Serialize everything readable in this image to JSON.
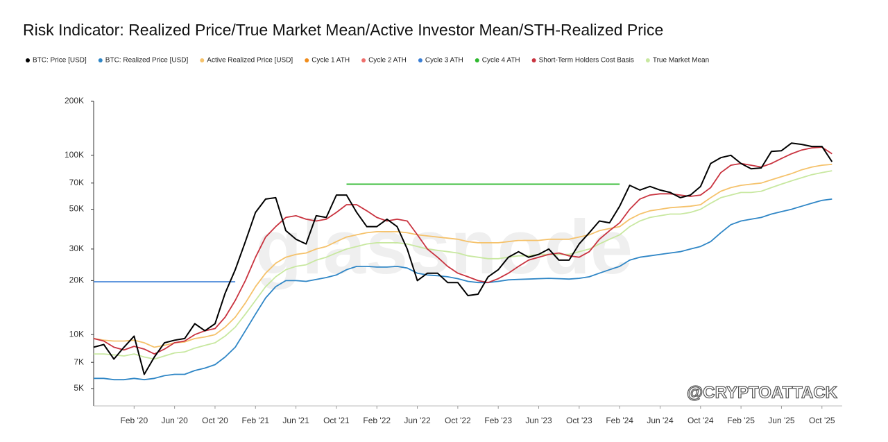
{
  "chart_data": {
    "type": "line",
    "title": "Risk Indicator: Realized Price/True Market Mean/Active Investor Mean/STH-Realized Price",
    "watermark": "glassnode",
    "credit": "@CRYPTOATTACK",
    "log_scale": true,
    "grid": false,
    "legend": "top",
    "x": [
      "2019-10",
      "2019-11",
      "2019-12",
      "2020-01",
      "2020-02",
      "2020-03",
      "2020-04",
      "2020-05",
      "2020-06",
      "2020-07",
      "2020-08",
      "2020-09",
      "2020-10",
      "2020-11",
      "2020-12",
      "2021-01",
      "2021-02",
      "2021-03",
      "2021-04",
      "2021-05",
      "2021-06",
      "2021-07",
      "2021-08",
      "2021-09",
      "2021-10",
      "2021-11",
      "2021-12",
      "2022-01",
      "2022-02",
      "2022-03",
      "2022-04",
      "2022-05",
      "2022-06",
      "2022-07",
      "2022-08",
      "2022-09",
      "2022-10",
      "2022-11",
      "2022-12",
      "2023-01",
      "2023-02",
      "2023-03",
      "2023-04",
      "2023-05",
      "2023-06",
      "2023-07",
      "2023-08",
      "2023-09",
      "2023-10",
      "2023-11",
      "2023-12",
      "2024-01",
      "2024-02",
      "2024-03",
      "2024-04",
      "2024-05",
      "2024-06",
      "2024-07",
      "2024-08",
      "2024-09",
      "2024-10",
      "2024-11",
      "2024-12",
      "2025-01",
      "2025-02",
      "2025-03",
      "2025-04",
      "2025-05",
      "2025-06",
      "2025-07",
      "2025-08",
      "2025-09",
      "2025-10",
      "2025-11"
    ],
    "xlim": [
      "2019-10",
      "2025-12"
    ],
    "xticks": [
      {
        "value": "2020-02",
        "label": "Feb '20"
      },
      {
        "value": "2020-06",
        "label": "Jun '20"
      },
      {
        "value": "2020-10",
        "label": "Oct '20"
      },
      {
        "value": "2021-02",
        "label": "Feb '21"
      },
      {
        "value": "2021-06",
        "label": "Jun '21"
      },
      {
        "value": "2021-10",
        "label": "Oct '21"
      },
      {
        "value": "2022-02",
        "label": "Feb '22"
      },
      {
        "value": "2022-06",
        "label": "Jun '22"
      },
      {
        "value": "2022-10",
        "label": "Oct '22"
      },
      {
        "value": "2023-02",
        "label": "Feb '23"
      },
      {
        "value": "2023-06",
        "label": "Jun '23"
      },
      {
        "value": "2023-10",
        "label": "Oct '23"
      },
      {
        "value": "2024-02",
        "label": "Feb '24"
      },
      {
        "value": "2024-06",
        "label": "Jun '24"
      },
      {
        "value": "2024-10",
        "label": "Oct '24"
      },
      {
        "value": "2025-02",
        "label": "Feb '25"
      },
      {
        "value": "2025-06",
        "label": "Jun '25"
      },
      {
        "value": "2025-10",
        "label": "Oct '25"
      }
    ],
    "ylim": [
      4000,
      200000
    ],
    "yticks": [
      {
        "value": 5000,
        "label": "5K"
      },
      {
        "value": 7000,
        "label": "7K"
      },
      {
        "value": 10000,
        "label": "10K"
      },
      {
        "value": 20000,
        "label": "20K"
      },
      {
        "value": 30000,
        "label": "30K"
      },
      {
        "value": 50000,
        "label": "50K"
      },
      {
        "value": 70000,
        "label": "70K"
      },
      {
        "value": 100000,
        "label": "100K"
      },
      {
        "value": 200000,
        "label": "200K"
      }
    ],
    "series": [
      {
        "name": "BTC: Price [USD]",
        "color": "#000000",
        "values": [
          8500,
          8800,
          7300,
          8500,
          9800,
          6000,
          7500,
          9000,
          9300,
          9500,
          11500,
          10500,
          11500,
          17000,
          23000,
          33000,
          48000,
          57000,
          58000,
          38000,
          34000,
          32000,
          46000,
          45000,
          60000,
          60000,
          48000,
          40000,
          40000,
          44000,
          40000,
          30000,
          20000,
          22000,
          22000,
          19500,
          19500,
          16500,
          16800,
          21000,
          23000,
          27000,
          29000,
          27000,
          28000,
          30000,
          26000,
          26000,
          32000,
          37000,
          43000,
          42000,
          52000,
          68000,
          64000,
          67000,
          64000,
          62000,
          58000,
          60000,
          67000,
          90000,
          97000,
          100000,
          90000,
          84000,
          85000,
          105000,
          106000,
          117000,
          115000,
          112000,
          112000,
          92000
        ]
      },
      {
        "name": "BTC: Realized Price [USD]",
        "color": "#2f86c6",
        "values": [
          5700,
          5700,
          5600,
          5600,
          5700,
          5600,
          5700,
          5900,
          6000,
          6000,
          6300,
          6500,
          6800,
          7500,
          8500,
          10500,
          13000,
          16000,
          18500,
          20000,
          20000,
          19800,
          20300,
          20800,
          21500,
          23000,
          24000,
          24000,
          23800,
          23800,
          24000,
          23500,
          22000,
          21500,
          21300,
          21000,
          20500,
          19800,
          19500,
          19500,
          19800,
          20200,
          20300,
          20400,
          20500,
          20600,
          20500,
          20400,
          20600,
          21000,
          22000,
          23000,
          24000,
          26000,
          27000,
          27500,
          28000,
          28500,
          29000,
          30000,
          31000,
          33000,
          37000,
          41000,
          43000,
          44000,
          45000,
          47000,
          48500,
          50000,
          52000,
          54000,
          56000,
          57000
        ]
      },
      {
        "name": "Active Realized Price [USD]",
        "color": "#f5c26b",
        "values": [
          9500,
          9300,
          9200,
          9200,
          9300,
          9000,
          8500,
          8700,
          9000,
          9100,
          9500,
          9700,
          10000,
          11000,
          12500,
          15000,
          18500,
          22000,
          25000,
          27000,
          28000,
          28500,
          30000,
          31000,
          33000,
          35000,
          36000,
          37000,
          37500,
          37500,
          37500,
          37000,
          36000,
          35500,
          35000,
          34500,
          34000,
          33000,
          32500,
          32500,
          32500,
          33000,
          33500,
          33500,
          33500,
          34000,
          34000,
          34000,
          35000,
          36000,
          38000,
          39000,
          40000,
          44000,
          47000,
          49000,
          50000,
          51000,
          51500,
          52000,
          53000,
          58000,
          63000,
          66000,
          68000,
          69000,
          70000,
          73000,
          76000,
          79000,
          83000,
          86000,
          88000,
          89000
        ]
      },
      {
        "name": "Cycle 1 ATH",
        "color": "#f08c1a",
        "values": [
          null,
          null,
          null,
          null,
          null,
          null,
          null,
          null,
          null,
          null,
          null,
          null,
          null,
          null,
          null,
          null,
          null,
          null,
          null,
          null,
          null,
          null,
          null,
          null,
          null,
          null,
          null,
          null,
          null,
          null,
          null,
          null,
          null,
          null,
          null,
          null,
          null,
          null,
          null,
          null,
          null,
          null,
          null,
          null,
          null,
          null,
          null,
          null,
          null,
          null,
          null,
          null,
          null,
          null,
          null,
          null,
          null,
          null,
          null,
          null,
          null,
          null,
          null,
          null,
          null,
          null,
          null,
          null,
          null,
          null,
          null,
          null,
          null,
          null
        ]
      },
      {
        "name": "Cycle 2 ATH",
        "color": "#ef6f6c",
        "values": [
          null,
          null,
          null,
          null,
          null,
          null,
          null,
          null,
          null,
          null,
          null,
          null,
          null,
          null,
          null,
          null,
          null,
          null,
          null,
          null,
          null,
          null,
          null,
          null,
          null,
          null,
          null,
          null,
          null,
          null,
          null,
          null,
          null,
          null,
          null,
          null,
          null,
          null,
          null,
          null,
          null,
          null,
          null,
          null,
          null,
          null,
          null,
          null,
          null,
          null,
          null,
          null,
          null,
          null,
          null,
          null,
          null,
          null,
          null,
          null,
          null,
          null,
          null,
          null,
          null,
          null,
          null,
          null,
          null,
          null,
          null,
          null,
          null,
          null
        ]
      },
      {
        "name": "Cycle 3 ATH",
        "color": "#3a7fd5",
        "values": [
          19700,
          19700,
          19700,
          19700,
          19700,
          19700,
          19700,
          19700,
          19700,
          19700,
          19700,
          19700,
          19700,
          19700,
          19700,
          null,
          null,
          null,
          null,
          null,
          null,
          null,
          null,
          null,
          null,
          null,
          null,
          null,
          null,
          null,
          null,
          null,
          null,
          null,
          null,
          null,
          null,
          null,
          null,
          null,
          null,
          null,
          null,
          null,
          null,
          null,
          null,
          null,
          null,
          null,
          null,
          null,
          null,
          null,
          null,
          null,
          null,
          null,
          null,
          null,
          null,
          null,
          null,
          null,
          null,
          null,
          null,
          null,
          null,
          null,
          null,
          null,
          null,
          null
        ]
      },
      {
        "name": "Cycle 4 ATH",
        "color": "#2eb82e",
        "values": [
          null,
          null,
          null,
          null,
          null,
          null,
          null,
          null,
          null,
          null,
          null,
          null,
          null,
          null,
          null,
          null,
          null,
          null,
          null,
          null,
          null,
          null,
          null,
          null,
          null,
          69000,
          69000,
          69000,
          69000,
          69000,
          69000,
          69000,
          69000,
          69000,
          69000,
          69000,
          69000,
          69000,
          69000,
          69000,
          69000,
          69000,
          69000,
          69000,
          69000,
          69000,
          69000,
          69000,
          69000,
          69000,
          69000,
          69000,
          69000,
          null,
          null,
          null,
          null,
          null,
          null,
          null,
          null,
          null,
          null,
          null,
          null,
          null,
          null,
          null,
          null,
          null,
          null,
          null,
          null,
          null
        ]
      },
      {
        "name": "Short-Term Holders Cost Basis",
        "color": "#c9333f",
        "values": [
          9500,
          9200,
          8500,
          8200,
          8600,
          8300,
          7800,
          8300,
          9000,
          9200,
          10000,
          10500,
          10800,
          12500,
          15500,
          20000,
          27000,
          35000,
          40000,
          45000,
          46000,
          44000,
          43000,
          44000,
          48000,
          53000,
          53000,
          49000,
          45000,
          43000,
          44000,
          43000,
          36000,
          30000,
          27000,
          24000,
          22000,
          21000,
          20000,
          19500,
          20500,
          22000,
          24000,
          26000,
          27000,
          28000,
          28500,
          27500,
          27000,
          29000,
          34000,
          38000,
          42000,
          50000,
          57000,
          60000,
          61000,
          61000,
          60000,
          59000,
          60000,
          66000,
          80000,
          88000,
          90000,
          88000,
          86000,
          90000,
          96000,
          102000,
          107000,
          110000,
          111000,
          102000
        ]
      },
      {
        "name": "True Market Mean",
        "color": "#c8e8a0",
        "values": [
          7800,
          7800,
          7700,
          7600,
          7800,
          7500,
          7300,
          7600,
          7900,
          8000,
          8400,
          8700,
          9000,
          9800,
          11000,
          13000,
          15500,
          18500,
          21000,
          23000,
          24000,
          24500,
          26000,
          27000,
          28500,
          30000,
          31000,
          32000,
          32500,
          32500,
          32500,
          32000,
          31000,
          30000,
          29500,
          29000,
          28500,
          27500,
          27000,
          26500,
          26500,
          27000,
          27500,
          27500,
          28000,
          28000,
          28000,
          28000,
          29000,
          30000,
          32000,
          34000,
          36000,
          40000,
          43000,
          45000,
          46000,
          47000,
          47000,
          48000,
          50000,
          54000,
          58000,
          60000,
          62000,
          62000,
          63000,
          66000,
          69000,
          72000,
          75000,
          78000,
          80000,
          82000
        ]
      }
    ]
  }
}
